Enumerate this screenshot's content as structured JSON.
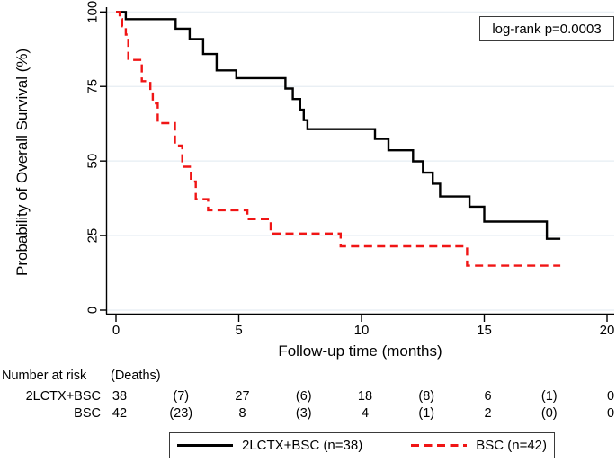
{
  "chart_data": {
    "type": "line",
    "subtype": "kaplan-meier-step-plot",
    "title": "",
    "xlabel": "Follow-up time (months)",
    "ylabel": "Probability of Overall Survival (%)",
    "xlim": [
      0,
      20.3
    ],
    "ylim": [
      0,
      100
    ],
    "xticks": [
      "0",
      "5",
      "10",
      "15",
      "20"
    ],
    "yticks": [
      "0",
      "25",
      "50",
      "75",
      "100"
    ],
    "grid": true,
    "legend_position": "bottom",
    "annotation": "log-rank p=0.0003",
    "series": [
      {
        "name": "2LCTX+BSC (n=38)",
        "color": "#000000",
        "dash": "solid",
        "end_time": 18.1,
        "steps": [
          [
            0,
            100
          ],
          [
            0.4,
            97.6
          ],
          [
            2.43,
            94.4
          ],
          [
            3.0,
            90.9
          ],
          [
            3.55,
            85.9
          ],
          [
            4.1,
            80.4
          ],
          [
            4.9,
            77.8
          ],
          [
            6.9,
            74.3
          ],
          [
            7.2,
            70.8
          ],
          [
            7.5,
            67.2
          ],
          [
            7.65,
            63.7
          ],
          [
            7.8,
            60.7
          ],
          [
            10.55,
            57.4
          ],
          [
            11.1,
            53.6
          ],
          [
            12.1,
            49.9
          ],
          [
            12.5,
            46.1
          ],
          [
            12.9,
            42.4
          ],
          [
            13.2,
            38.1
          ],
          [
            14.4,
            34.7
          ],
          [
            15.0,
            29.7
          ],
          [
            17.55,
            23.9
          ]
        ]
      },
      {
        "name": "BSC (n=42)",
        "color": "#f01515",
        "dash": "dashed",
        "end_time": 18.1,
        "steps": [
          [
            0,
            100
          ],
          [
            0.15,
            97.6
          ],
          [
            0.25,
            95.2
          ],
          [
            0.4,
            92.4
          ],
          [
            0.5,
            83.9
          ],
          [
            1.05,
            76.8
          ],
          [
            1.4,
            73.8
          ],
          [
            1.5,
            69.3
          ],
          [
            1.7,
            62.7
          ],
          [
            2.4,
            55.2
          ],
          [
            2.7,
            48.1
          ],
          [
            3.05,
            43.1
          ],
          [
            3.25,
            37.2
          ],
          [
            3.75,
            33.5
          ],
          [
            5.35,
            30.5
          ],
          [
            6.3,
            25.7
          ],
          [
            9.15,
            21.4
          ],
          [
            14.3,
            14.9
          ]
        ]
      }
    ],
    "risk_table": {
      "header": "Number at risk",
      "deaths_header": "(Deaths)",
      "times": [
        0,
        5,
        10,
        15,
        20
      ],
      "rows": [
        {
          "label": "2LCTX+BSC",
          "at_risk": [
            "38",
            "27",
            "18",
            "6",
            "0"
          ],
          "deaths": [
            "(7)",
            "(6)",
            "(8)",
            "(1)"
          ]
        },
        {
          "label": "BSC",
          "at_risk": [
            "42",
            "8",
            "4",
            "2",
            "0"
          ],
          "deaths": [
            "(23)",
            "(3)",
            "(1)",
            "(0)"
          ]
        }
      ]
    }
  },
  "colors": {
    "grid": "#e6edf3",
    "axis": "#000000",
    "box_border": "#3a3a3a",
    "curve_black": "#000000",
    "curve_red": "#f01515"
  }
}
